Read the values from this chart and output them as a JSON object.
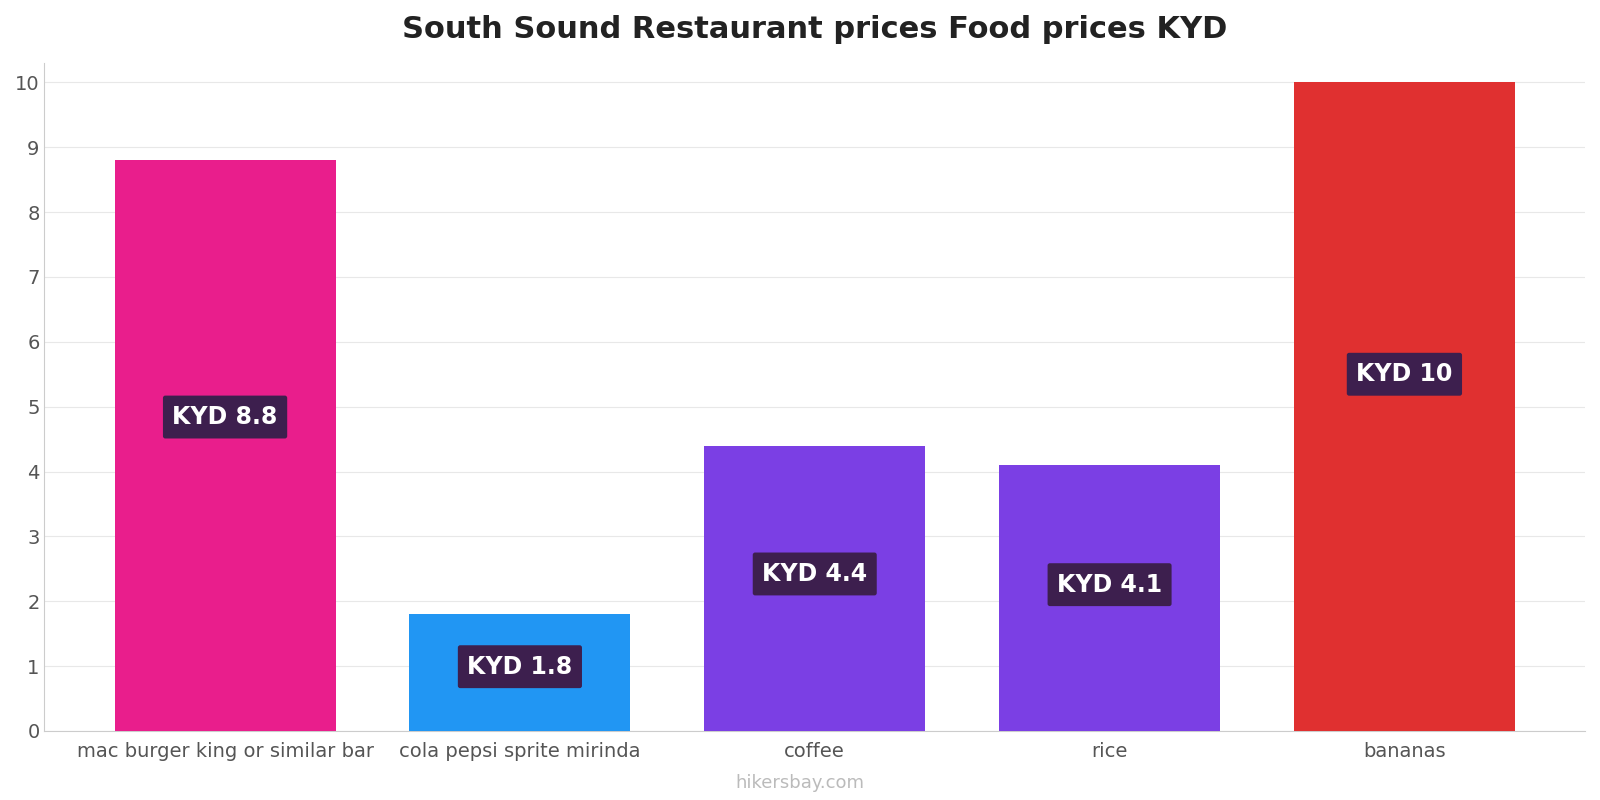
{
  "title": "South Sound Restaurant prices Food prices KYD",
  "categories": [
    "mac burger king or similar bar",
    "cola pepsi sprite mirinda",
    "coffee",
    "rice",
    "bananas"
  ],
  "values": [
    8.8,
    1.8,
    4.4,
    4.1,
    10
  ],
  "bar_colors": [
    "#e91e8c",
    "#2196f3",
    "#7b3fe4",
    "#7b3fe4",
    "#e03030"
  ],
  "label_texts": [
    "KYD 8.8",
    "KYD 1.8",
    "KYD 4.4",
    "KYD 4.1",
    "KYD 10"
  ],
  "label_box_color": "#3d1f4e",
  "label_text_color": "#ffffff",
  "ylim": [
    0,
    10.3
  ],
  "yticks": [
    0,
    1,
    2,
    3,
    4,
    5,
    6,
    7,
    8,
    9,
    10
  ],
  "background_color": "#ffffff",
  "title_fontsize": 22,
  "tick_fontsize": 14,
  "label_fontsize": 17,
  "watermark": "hikersbay.com",
  "bar_width": 0.75
}
